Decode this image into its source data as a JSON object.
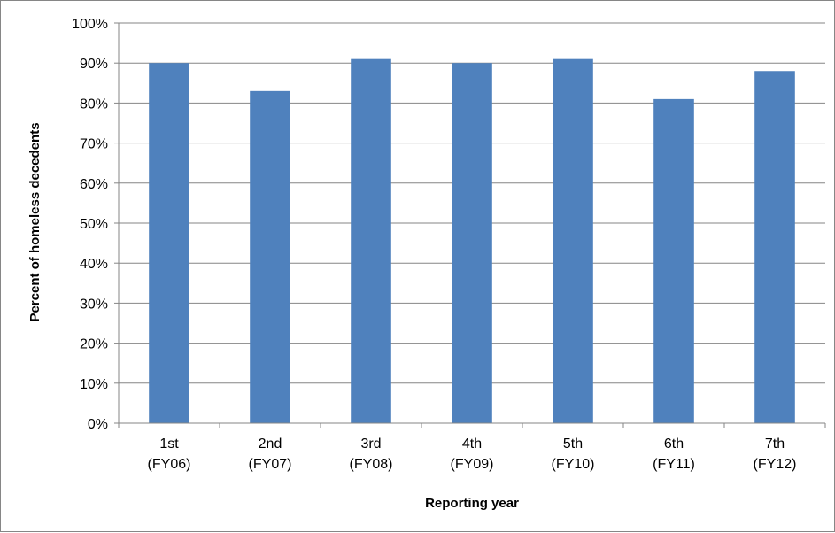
{
  "chart_data": {
    "type": "bar",
    "title": "",
    "xlabel": "Reporting year",
    "ylabel": "Percent of homeless decedents",
    "categories": [
      [
        "1st",
        "(FY06)"
      ],
      [
        "2nd",
        "(FY07)"
      ],
      [
        "3rd",
        "(FY08)"
      ],
      [
        "4th",
        "(FY09)"
      ],
      [
        "5th",
        "(FY10)"
      ],
      [
        "6th",
        "(FY11)"
      ],
      [
        "7th",
        "(FY12)"
      ]
    ],
    "values": [
      90,
      83,
      91,
      90,
      91,
      81,
      88
    ],
    "ylim": [
      0,
      100
    ],
    "ytick_step": 10,
    "ytick_labels": [
      "0%",
      "10%",
      "20%",
      "30%",
      "40%",
      "50%",
      "60%",
      "70%",
      "80%",
      "90%",
      "100%"
    ],
    "grid": true,
    "legend": "none",
    "colors": {
      "bar": "#4F81BD",
      "gridline": "#868686",
      "axis": "#868686"
    }
  }
}
